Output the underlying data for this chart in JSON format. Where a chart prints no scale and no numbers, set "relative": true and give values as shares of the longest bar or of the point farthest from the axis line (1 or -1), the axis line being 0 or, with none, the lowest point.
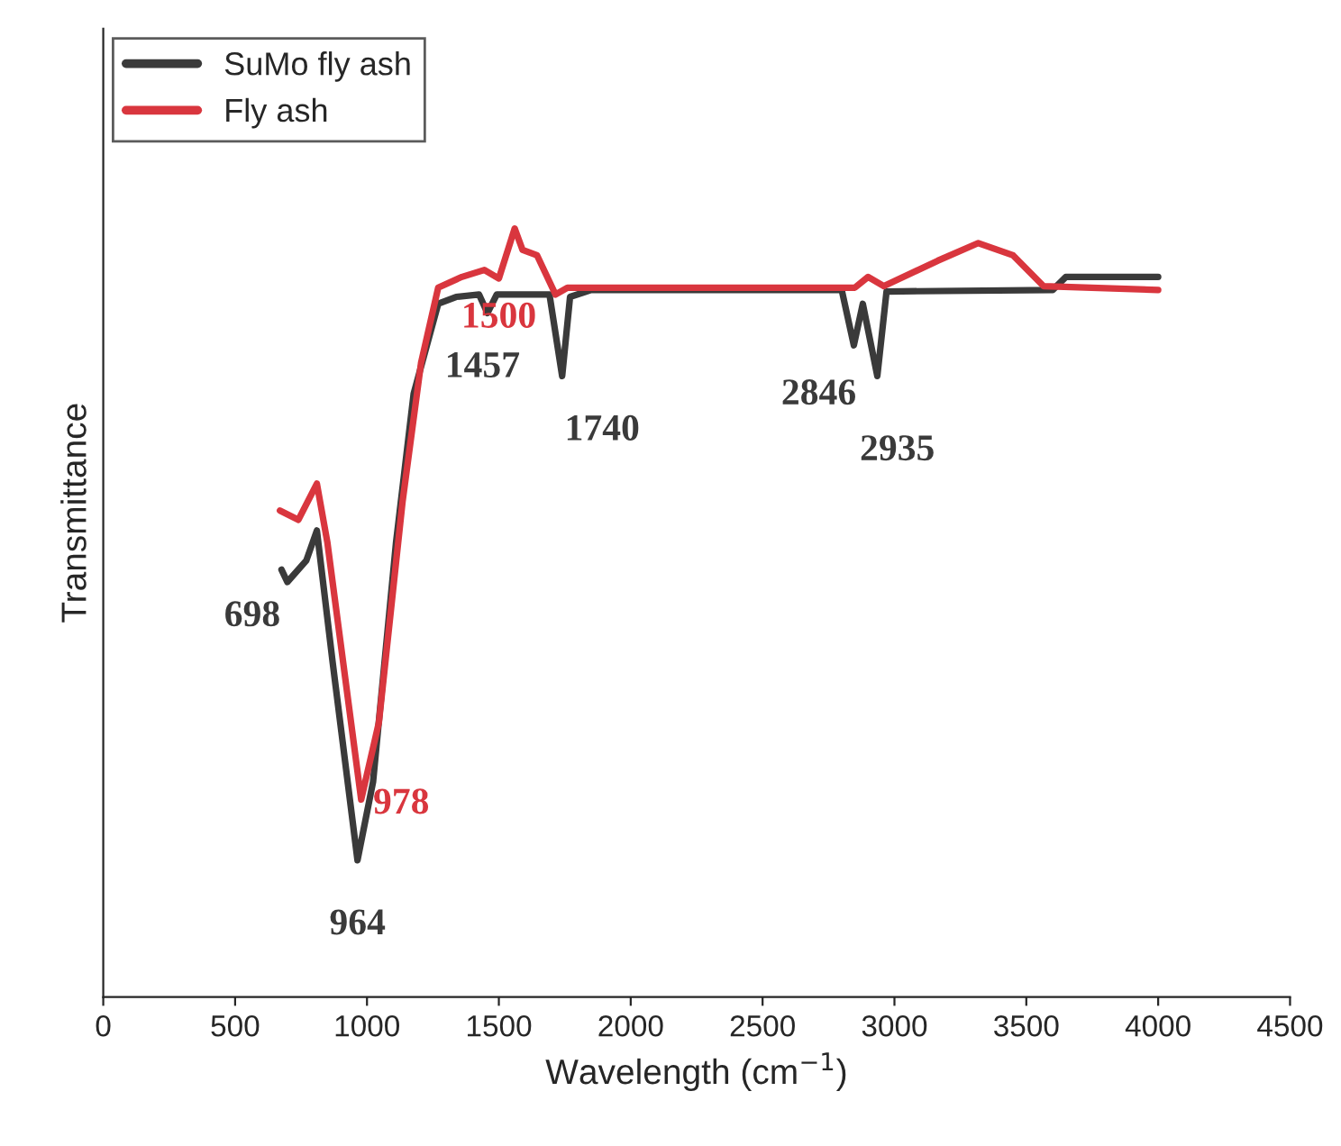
{
  "chart_data": {
    "type": "line",
    "relative": true,
    "xlabel": "Wavelength (cm$^{−1}$)",
    "ylabel": "Transmittance",
    "xlim": [
      0,
      4500
    ],
    "xticks": [
      0,
      500,
      1000,
      1500,
      2000,
      2500,
      3000,
      3500,
      4000,
      4500
    ],
    "legend": "top left",
    "grid": false,
    "marker": "none",
    "line_style": "solid",
    "series": [
      {
        "name": "SuMo fly ash",
        "color": "#3a3a3a",
        "x": [
          676,
          698,
          770,
          810,
          870,
          964,
          1023,
          1110,
          1177,
          1270,
          1338,
          1425,
          1457,
          1492,
          1692,
          1740,
          1770,
          1850,
          2800,
          2846,
          2880,
          2935,
          2970,
          3600,
          3650,
          4000
        ],
        "values": [
          0.556,
          0.54,
          0.568,
          0.607,
          0.435,
          0.178,
          0.28,
          0.591,
          0.785,
          0.902,
          0.911,
          0.914,
          0.89,
          0.914,
          0.914,
          0.808,
          0.911,
          0.92,
          0.92,
          0.848,
          0.902,
          0.808,
          0.918,
          0.92,
          0.937,
          0.937
        ]
      },
      {
        "name": "Fly ash",
        "color": "#d9363e",
        "x": [
          670,
          740,
          810,
          850,
          978,
          1045,
          1135,
          1205,
          1270,
          1360,
          1445,
          1500,
          1560,
          1590,
          1645,
          1715,
          1760,
          2850,
          2900,
          2960,
          3164,
          3318,
          3450,
          3565,
          4000
        ],
        "values": [
          0.633,
          0.621,
          0.668,
          0.591,
          0.257,
          0.357,
          0.645,
          0.825,
          0.923,
          0.937,
          0.946,
          0.935,
          1.0,
          0.972,
          0.965,
          0.914,
          0.923,
          0.923,
          0.937,
          0.925,
          0.958,
          0.981,
          0.965,
          0.925,
          0.92
        ]
      }
    ],
    "annotations": [
      {
        "text": "698",
        "x": 698,
        "y": 0.54
      },
      {
        "text": "964",
        "x": 964,
        "y": 0.178
      },
      {
        "text": "978",
        "x": 978,
        "y": 0.257
      },
      {
        "text": "1500",
        "x": 1500,
        "y": 0.935
      },
      {
        "text": "1457",
        "x": 1457,
        "y": 0.89
      },
      {
        "text": "1740",
        "x": 1740,
        "y": 0.808
      },
      {
        "text": "2846",
        "x": 2846,
        "y": 0.848
      },
      {
        "text": "2935",
        "x": 2935,
        "y": 0.808
      }
    ]
  }
}
